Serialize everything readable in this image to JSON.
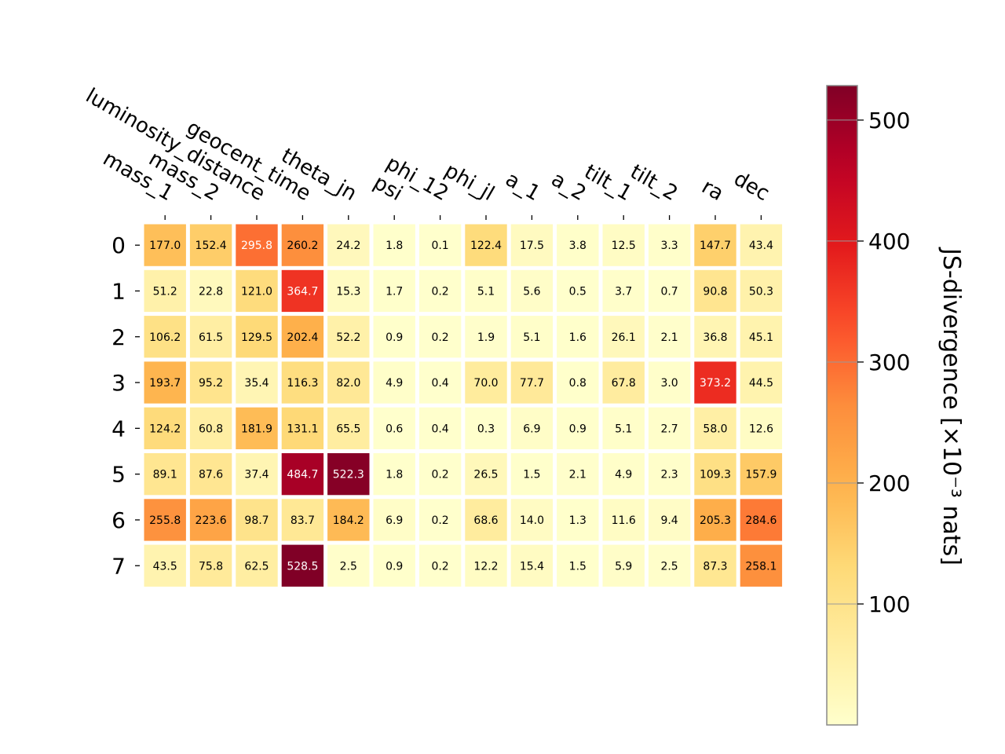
{
  "chart_data": {
    "type": "heatmap",
    "x_labels": [
      "mass_1",
      "mass_2",
      "luminosity_distance",
      "geocent_time",
      "theta_jn",
      "psi",
      "phi_12",
      "phi_jl",
      "a_1",
      "a_2",
      "tilt_1",
      "tilt_2",
      "ra",
      "dec"
    ],
    "y_labels": [
      "0",
      "1",
      "2",
      "3",
      "4",
      "5",
      "6",
      "7"
    ],
    "values": [
      [
        177.0,
        152.4,
        295.8,
        260.2,
        24.2,
        1.8,
        0.1,
        122.4,
        17.5,
        3.8,
        12.5,
        3.3,
        147.7,
        43.4
      ],
      [
        51.2,
        22.8,
        121.0,
        364.7,
        15.3,
        1.7,
        0.2,
        5.1,
        5.6,
        0.5,
        3.7,
        0.7,
        90.8,
        50.3
      ],
      [
        106.2,
        61.5,
        129.5,
        202.4,
        52.2,
        0.9,
        0.2,
        1.9,
        5.1,
        1.6,
        26.1,
        2.1,
        36.8,
        45.1
      ],
      [
        193.7,
        95.2,
        35.4,
        116.3,
        82.0,
        4.9,
        0.4,
        70.0,
        77.7,
        0.8,
        67.8,
        3.0,
        373.2,
        44.5
      ],
      [
        124.2,
        60.8,
        181.9,
        131.1,
        65.5,
        0.6,
        0.4,
        0.3,
        6.9,
        0.9,
        5.1,
        2.7,
        58.0,
        12.6
      ],
      [
        89.1,
        87.6,
        37.4,
        484.7,
        522.3,
        1.8,
        0.2,
        26.5,
        1.5,
        2.1,
        4.9,
        2.3,
        109.3,
        157.9
      ],
      [
        255.8,
        223.6,
        98.7,
        83.7,
        184.2,
        6.9,
        0.2,
        68.6,
        14.0,
        1.3,
        11.6,
        9.4,
        205.3,
        284.6
      ],
      [
        43.5,
        75.8,
        62.5,
        528.5,
        2.5,
        0.9,
        0.2,
        12.2,
        15.4,
        1.5,
        5.9,
        2.5,
        87.3,
        258.1
      ]
    ],
    "colormap": "YlOrRd",
    "color_range": [
      0,
      528.5
    ],
    "colorbar": {
      "label": "JS-divergence [×10⁻³ nats]",
      "ticks": [
        "100",
        "200",
        "300",
        "400",
        "500"
      ],
      "tick_values": [
        100,
        200,
        300,
        400,
        500
      ]
    },
    "x_tick_rotation": "rotated -30 degrees, labels on top",
    "grid": false
  }
}
